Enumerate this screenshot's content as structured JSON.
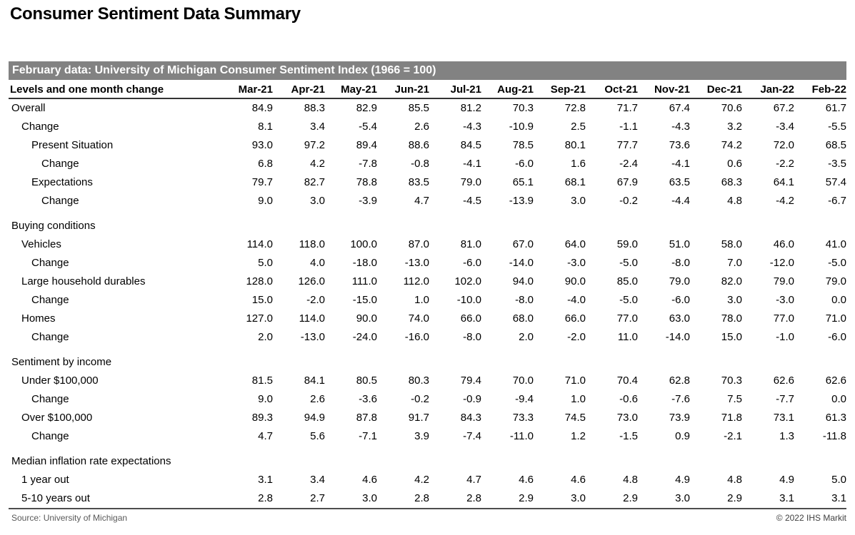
{
  "page": {
    "title": "Consumer Sentiment Data Summary",
    "footer": {
      "source": "Source: University of Michigan",
      "copyright": "© 2022 IHS Markit"
    },
    "colors": {
      "banner_bg": "#828282",
      "banner_text": "#ffffff",
      "header_rule": "#333333",
      "footer_rule": "#4d4d4d",
      "source_text": "#595959",
      "copyright_text": "#404040"
    }
  },
  "chart_data": {
    "type": "table",
    "title": "Consumer Sentiment Data Summary",
    "banner": "February data: University of Michigan Consumer Sentiment Index (1966 = 100)",
    "row_header": "Levels and one month change",
    "columns": [
      "Mar-21",
      "Apr-21",
      "May-21",
      "Jun-21",
      "Jul-21",
      "Aug-21",
      "Sep-21",
      "Oct-21",
      "Nov-21",
      "Dec-21",
      "Jan-22",
      "Feb-22"
    ],
    "rows": [
      {
        "label": "Overall",
        "indent": 0,
        "section": false,
        "values": [
          "84.9",
          "88.3",
          "82.9",
          "85.5",
          "81.2",
          "70.3",
          "72.8",
          "71.7",
          "67.4",
          "70.6",
          "67.2",
          "61.7"
        ]
      },
      {
        "label": "Change",
        "indent": 1,
        "section": false,
        "values": [
          "8.1",
          "3.4",
          "-5.4",
          "2.6",
          "-4.3",
          "-10.9",
          "2.5",
          "-1.1",
          "-4.3",
          "3.2",
          "-3.4",
          "-5.5"
        ]
      },
      {
        "label": "Present Situation",
        "indent": 2,
        "section": false,
        "values": [
          "93.0",
          "97.2",
          "89.4",
          "88.6",
          "84.5",
          "78.5",
          "80.1",
          "77.7",
          "73.6",
          "74.2",
          "72.0",
          "68.5"
        ]
      },
      {
        "label": "Change",
        "indent": 3,
        "section": false,
        "values": [
          "6.8",
          "4.2",
          "-7.8",
          "-0.8",
          "-4.1",
          "-6.0",
          "1.6",
          "-2.4",
          "-4.1",
          "0.6",
          "-2.2",
          "-3.5"
        ]
      },
      {
        "label": "Expectations",
        "indent": 2,
        "section": false,
        "values": [
          "79.7",
          "82.7",
          "78.8",
          "83.5",
          "79.0",
          "65.1",
          "68.1",
          "67.9",
          "63.5",
          "68.3",
          "64.1",
          "57.4"
        ]
      },
      {
        "label": "Change",
        "indent": 3,
        "section": false,
        "values": [
          "9.0",
          "3.0",
          "-3.9",
          "4.7",
          "-4.5",
          "-13.9",
          "3.0",
          "-0.2",
          "-4.4",
          "4.8",
          "-4.2",
          "-6.7"
        ]
      },
      {
        "label": "Buying conditions",
        "indent": 0,
        "section": true,
        "values": []
      },
      {
        "label": "Vehicles",
        "indent": 1,
        "section": false,
        "values": [
          "114.0",
          "118.0",
          "100.0",
          "87.0",
          "81.0",
          "67.0",
          "64.0",
          "59.0",
          "51.0",
          "58.0",
          "46.0",
          "41.0"
        ]
      },
      {
        "label": "Change",
        "indent": 2,
        "section": false,
        "values": [
          "5.0",
          "4.0",
          "-18.0",
          "-13.0",
          "-6.0",
          "-14.0",
          "-3.0",
          "-5.0",
          "-8.0",
          "7.0",
          "-12.0",
          "-5.0"
        ]
      },
      {
        "label": "Large household durables",
        "indent": 1,
        "section": false,
        "values": [
          "128.0",
          "126.0",
          "111.0",
          "112.0",
          "102.0",
          "94.0",
          "90.0",
          "85.0",
          "79.0",
          "82.0",
          "79.0",
          "79.0"
        ]
      },
      {
        "label": "Change",
        "indent": 2,
        "section": false,
        "values": [
          "15.0",
          "-2.0",
          "-15.0",
          "1.0",
          "-10.0",
          "-8.0",
          "-4.0",
          "-5.0",
          "-6.0",
          "3.0",
          "-3.0",
          "0.0"
        ]
      },
      {
        "label": "Homes",
        "indent": 1,
        "section": false,
        "values": [
          "127.0",
          "114.0",
          "90.0",
          "74.0",
          "66.0",
          "68.0",
          "66.0",
          "77.0",
          "63.0",
          "78.0",
          "77.0",
          "71.0"
        ]
      },
      {
        "label": "Change",
        "indent": 2,
        "section": false,
        "values": [
          "2.0",
          "-13.0",
          "-24.0",
          "-16.0",
          "-8.0",
          "2.0",
          "-2.0",
          "11.0",
          "-14.0",
          "15.0",
          "-1.0",
          "-6.0"
        ]
      },
      {
        "label": "Sentiment by income",
        "indent": 0,
        "section": true,
        "values": []
      },
      {
        "label": "Under $100,000",
        "indent": 1,
        "section": false,
        "values": [
          "81.5",
          "84.1",
          "80.5",
          "80.3",
          "79.4",
          "70.0",
          "71.0",
          "70.4",
          "62.8",
          "70.3",
          "62.6",
          "62.6"
        ]
      },
      {
        "label": "Change",
        "indent": 2,
        "section": false,
        "values": [
          "9.0",
          "2.6",
          "-3.6",
          "-0.2",
          "-0.9",
          "-9.4",
          "1.0",
          "-0.6",
          "-7.6",
          "7.5",
          "-7.7",
          "0.0"
        ]
      },
      {
        "label": "Over $100,000",
        "indent": 1,
        "section": false,
        "values": [
          "89.3",
          "94.9",
          "87.8",
          "91.7",
          "84.3",
          "73.3",
          "74.5",
          "73.0",
          "73.9",
          "71.8",
          "73.1",
          "61.3"
        ]
      },
      {
        "label": "Change",
        "indent": 2,
        "section": false,
        "values": [
          "4.7",
          "5.6",
          "-7.1",
          "3.9",
          "-7.4",
          "-11.0",
          "1.2",
          "-1.5",
          "0.9",
          "-2.1",
          "1.3",
          "-11.8"
        ]
      },
      {
        "label": "Median inflation rate expectations",
        "indent": 0,
        "section": true,
        "values": []
      },
      {
        "label": "1 year out",
        "indent": 1,
        "section": false,
        "values": [
          "3.1",
          "3.4",
          "4.6",
          "4.2",
          "4.7",
          "4.6",
          "4.6",
          "4.8",
          "4.9",
          "4.8",
          "4.9",
          "5.0"
        ]
      },
      {
        "label": "5-10 years out",
        "indent": 1,
        "section": false,
        "values": [
          "2.8",
          "2.7",
          "3.0",
          "2.8",
          "2.8",
          "2.9",
          "3.0",
          "2.9",
          "3.0",
          "2.9",
          "3.1",
          "3.1"
        ]
      }
    ]
  }
}
